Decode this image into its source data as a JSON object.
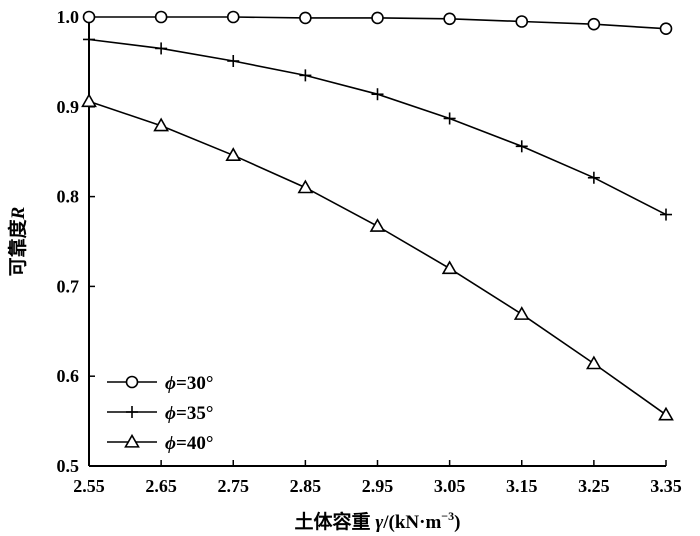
{
  "chart_data": {
    "type": "line",
    "xlabel_prefix": "土体容重 ",
    "xlabel_symbol": "γ",
    "xlabel_unit": "/(kN·m",
    "xlabel_exp": "−3",
    "xlabel_close": ")",
    "ylabel_text": "可靠度",
    "ylabel_symbol": "R",
    "x": [
      2.55,
      2.65,
      2.75,
      2.85,
      2.95,
      3.05,
      3.15,
      3.25,
      3.35
    ],
    "x_tick_labels": [
      "2.55",
      "2.65",
      "2.75",
      "2.85",
      "2.95",
      "3.05",
      "3.15",
      "3.25",
      "3.35"
    ],
    "y_tick_values": [
      0.5,
      0.6,
      0.7,
      0.8,
      0.9,
      1.0
    ],
    "y_tick_labels": [
      "0.5",
      "0.6",
      "0.7",
      "0.8",
      "0.9",
      "1.0"
    ],
    "xlim": [
      2.55,
      3.35
    ],
    "ylim": [
      0.5,
      1.0
    ],
    "grid": false,
    "legend_position": "bottom-left",
    "series": [
      {
        "name_symbol": "ϕ",
        "name_value": "=30°",
        "marker": "circle",
        "values": [
          1.0,
          1.0,
          1.0,
          0.999,
          0.999,
          0.998,
          0.995,
          0.992,
          0.987
        ]
      },
      {
        "name_symbol": "ϕ",
        "name_value": "=35°",
        "marker": "plus",
        "values": [
          0.975,
          0.965,
          0.951,
          0.935,
          0.914,
          0.887,
          0.856,
          0.821,
          0.78
        ]
      },
      {
        "name_symbol": "ϕ",
        "name_value": "=40°",
        "marker": "triangle",
        "values": [
          0.906,
          0.879,
          0.846,
          0.81,
          0.767,
          0.72,
          0.669,
          0.614,
          0.557
        ]
      }
    ],
    "line_color": "#000000"
  }
}
